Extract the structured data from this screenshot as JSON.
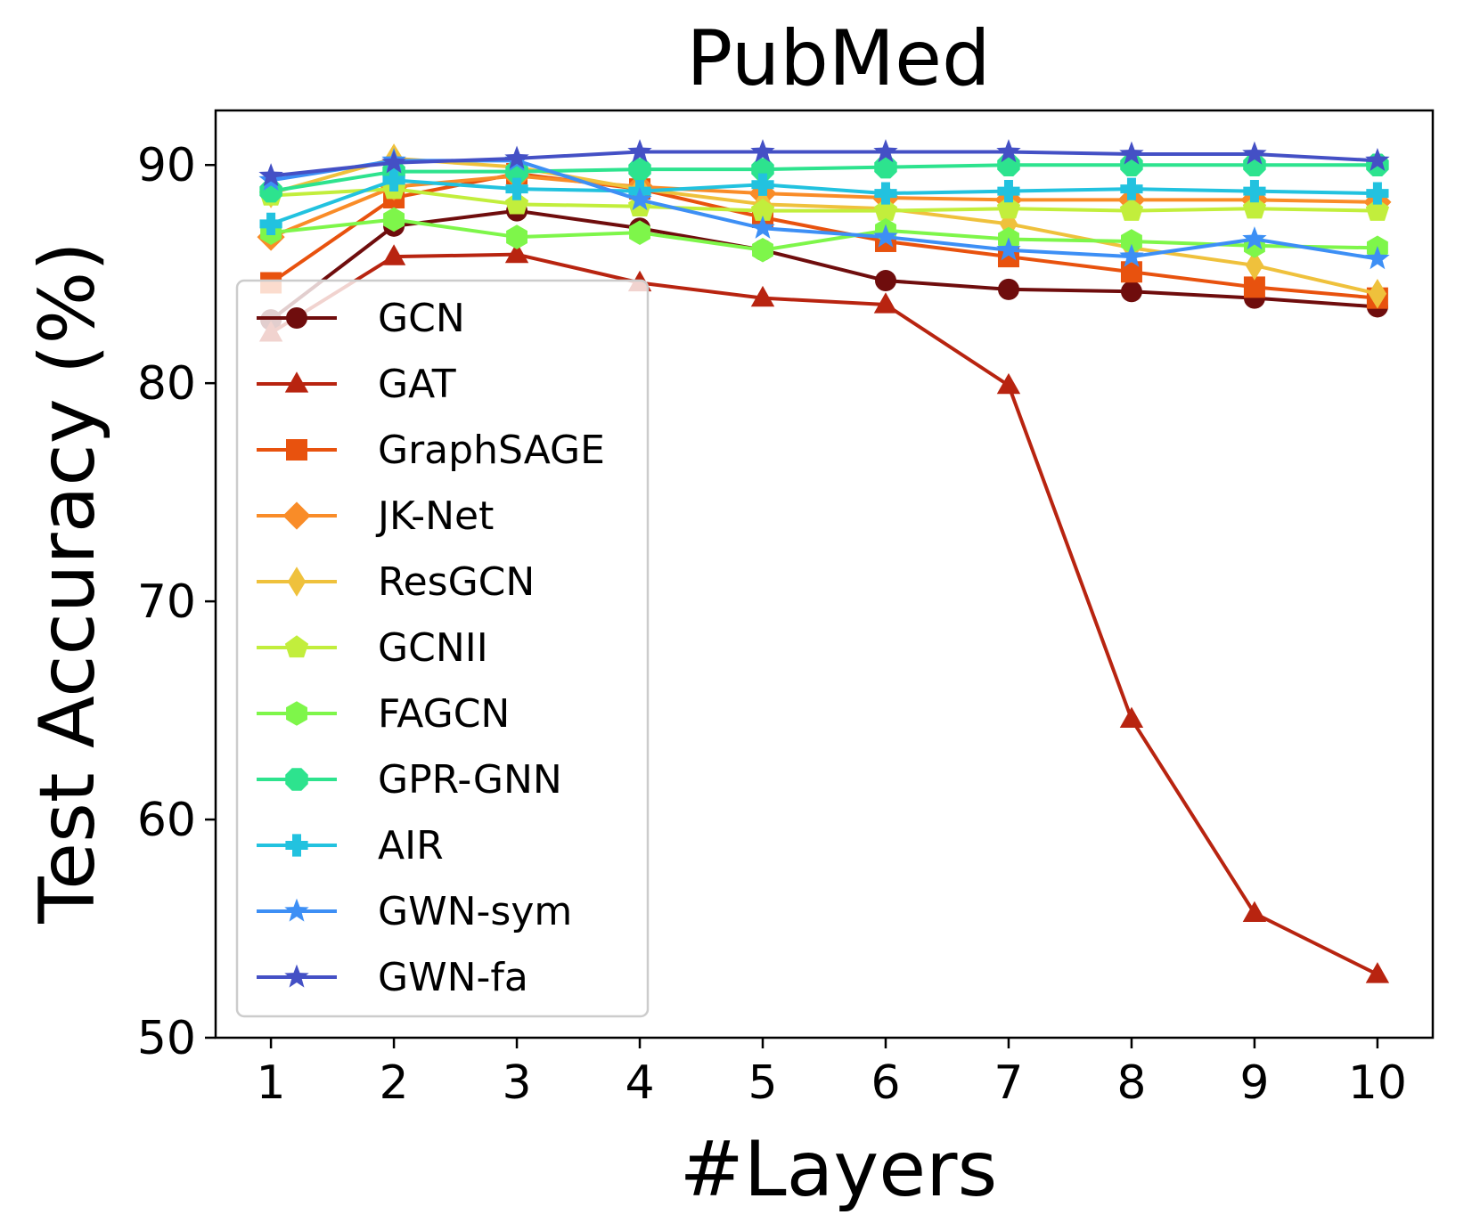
{
  "chart_data": {
    "type": "line",
    "title": "PubMed",
    "xlabel": "#Layers",
    "ylabel": "Test Accuracy (%)",
    "x": [
      1,
      2,
      3,
      4,
      5,
      6,
      7,
      8,
      9,
      10
    ],
    "xlim": [
      0.55,
      10.45
    ],
    "ylim": [
      50,
      92.5
    ],
    "yticks": [
      50,
      60,
      70,
      80,
      90
    ],
    "xticks": [
      1,
      2,
      3,
      4,
      5,
      6,
      7,
      8,
      9,
      10
    ],
    "grid": false,
    "legend_position": "center-left",
    "series": [
      {
        "name": "GCN",
        "color": "#6f0d0d",
        "marker": "circle",
        "values": [
          82.9,
          87.2,
          87.9,
          87.1,
          86.1,
          84.7,
          84.3,
          84.2,
          83.9,
          83.5
        ]
      },
      {
        "name": "GAT",
        "color": "#b82410",
        "marker": "triangle",
        "values": [
          82.3,
          85.8,
          85.9,
          84.6,
          83.9,
          83.6,
          79.9,
          64.6,
          55.7,
          52.9
        ]
      },
      {
        "name": "GraphSAGE",
        "color": "#e8520e",
        "marker": "square",
        "values": [
          84.6,
          88.5,
          89.6,
          88.9,
          87.6,
          86.5,
          85.8,
          85.1,
          84.4,
          83.9
        ]
      },
      {
        "name": "JK-Net",
        "color": "#f98c28",
        "marker": "diamond",
        "values": [
          86.7,
          89.0,
          89.5,
          89.0,
          88.7,
          88.5,
          88.4,
          88.4,
          88.4,
          88.3
        ]
      },
      {
        "name": "ResGCN",
        "color": "#efc13c",
        "marker": "thin_diamond",
        "values": [
          88.7,
          90.3,
          89.9,
          88.9,
          88.2,
          88.0,
          87.3,
          86.2,
          85.4,
          84.1
        ]
      },
      {
        "name": "GCNII",
        "color": "#c2ee3c",
        "marker": "pentagon",
        "values": [
          88.6,
          88.9,
          88.2,
          88.1,
          87.9,
          87.9,
          88.0,
          87.9,
          88.0,
          87.9
        ]
      },
      {
        "name": "FAGCN",
        "color": "#7ef64a",
        "marker": "hexagon",
        "values": [
          86.9,
          87.5,
          86.7,
          86.9,
          86.1,
          87.0,
          86.6,
          86.5,
          86.3,
          86.2
        ]
      },
      {
        "name": "GPR-GNN",
        "color": "#2de38e",
        "marker": "octagon",
        "values": [
          88.8,
          89.7,
          89.7,
          89.8,
          89.8,
          89.9,
          90.0,
          90.0,
          90.0,
          90.0
        ]
      },
      {
        "name": "AIR",
        "color": "#22c2df",
        "marker": "plus",
        "values": [
          87.3,
          89.3,
          88.9,
          88.8,
          89.1,
          88.7,
          88.8,
          88.9,
          88.8,
          88.7
        ]
      },
      {
        "name": "GWN-sym",
        "color": "#3d8ff5",
        "marker": "star",
        "values": [
          89.3,
          90.2,
          90.2,
          88.4,
          87.1,
          86.7,
          86.1,
          85.8,
          86.6,
          85.7
        ]
      },
      {
        "name": "GWN-fa",
        "color": "#4450c5",
        "marker": "star",
        "values": [
          89.5,
          90.1,
          90.3,
          90.6,
          90.6,
          90.6,
          90.6,
          90.5,
          90.5,
          90.2
        ]
      }
    ]
  }
}
